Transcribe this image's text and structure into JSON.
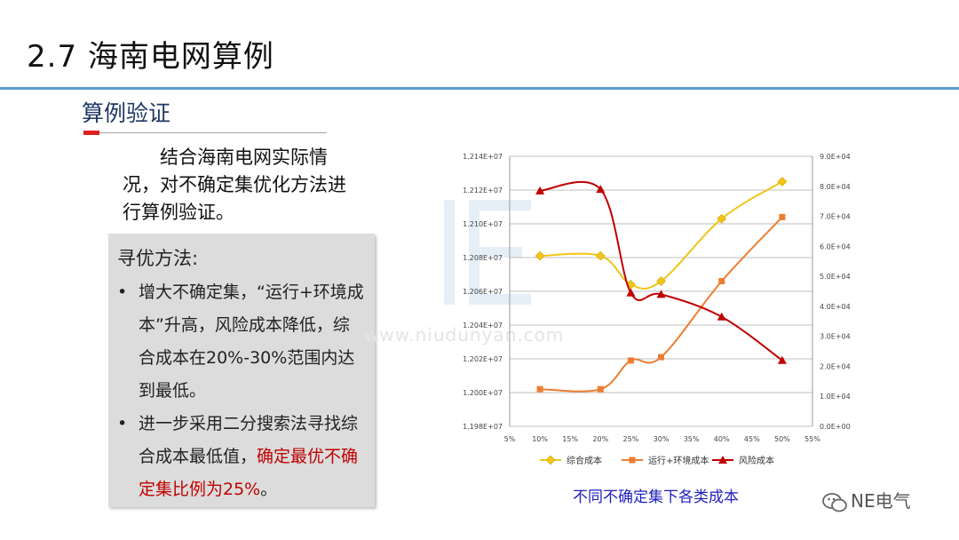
{
  "slide": {
    "title": "2.7 海南电网算例",
    "subtitle": "算例验证",
    "intro": "结合海南电网实际情况，对不确定集优化方法进行算例验证。",
    "box_title": "寻优方法:",
    "bullets": [
      {
        "text": "增大不确定集，“运行+环境成本”升高，风险成本降低，综合成本在20%-30%范围内达到最低。"
      },
      {
        "text_before": "进一步采用二分搜索法寻找综合成本最低值，",
        "text_red": "确定最优不确定集比例为25%",
        "text_after": "。"
      }
    ],
    "watermark": "www.niudunyan.com",
    "caption": "不同不确定集下各类成本",
    "brand": "NE电气"
  },
  "colors": {
    "title_rule": "#5b9bd5",
    "accent_red": "#e02020",
    "highlight_red": "#c00000",
    "caption_blue": "#1f1fbf",
    "series_1": "#f0c419",
    "series_2": "#ed7d31",
    "series_3": "#c00000"
  },
  "chart_data": {
    "type": "line",
    "x": [
      10,
      20,
      25,
      30,
      40,
      50
    ],
    "x_unit": "%",
    "x_ticks": [
      "5%",
      "10%",
      "15%",
      "20%",
      "25%",
      "30%",
      "35%",
      "40%",
      "45%",
      "50%",
      "55%"
    ],
    "xlim": [
      5,
      55
    ],
    "y_left_ticks": [
      "1.198E+07",
      "1.200E+07",
      "1.202E+07",
      "1.204E+07",
      "1.206E+07",
      "1.208E+07",
      "1.210E+07",
      "1.212E+07",
      "1.214E+07"
    ],
    "ylim_left": [
      11980000,
      12140000
    ],
    "y_right_ticks": [
      "0.0E+00",
      "1.0E+04",
      "2.0E+04",
      "3.0E+04",
      "4.0E+04",
      "5.0E+04",
      "6.0E+04",
      "7.0E+04",
      "8.0E+04",
      "9.0E+04"
    ],
    "ylim_right": [
      0,
      90000
    ],
    "grid": true,
    "legend_position": "bottom",
    "series": [
      {
        "name": "综合成本",
        "axis": "left",
        "marker": "diamond",
        "color": "#f0c419",
        "values": [
          12081000,
          12081000,
          12064000,
          12066000,
          12103000,
          12125000
        ]
      },
      {
        "name": "运行+环境成本",
        "axis": "left",
        "marker": "square",
        "color": "#ed7d31",
        "values": [
          12002000,
          12002000,
          12019000,
          12021000,
          12066000,
          12104000
        ]
      },
      {
        "name": "风险成本",
        "axis": "right",
        "marker": "triangle",
        "color": "#c00000",
        "values": [
          78500,
          79000,
          44500,
          44000,
          36500,
          22000
        ]
      }
    ]
  }
}
